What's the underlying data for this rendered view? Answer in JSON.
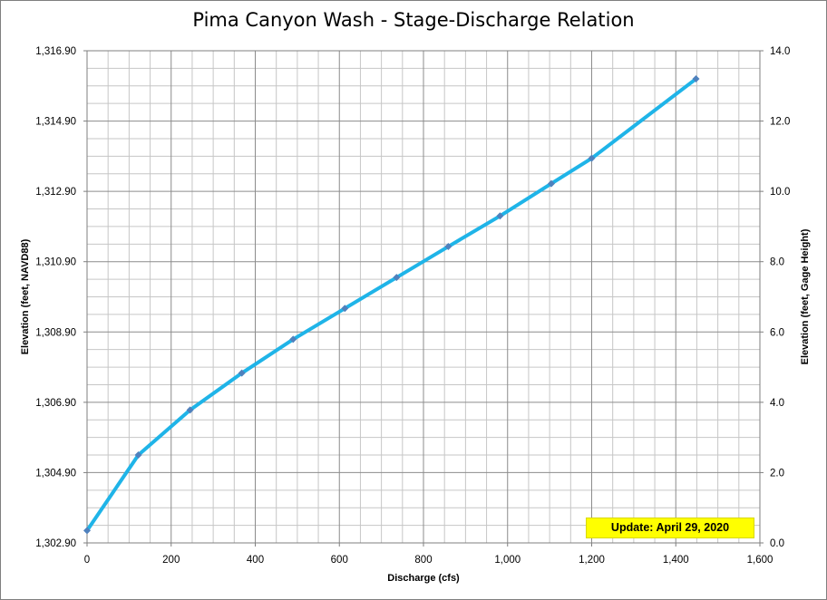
{
  "chart_data": {
    "type": "line",
    "title": "Pima Canyon Wash - Stage-Discharge Relation",
    "xlabel": "Discharge (cfs)",
    "ylabel_left": "Elevation (feet, NAVD88)",
    "ylabel_right": "Elevation (feet, Gage Height)",
    "xlim": [
      0,
      1600
    ],
    "ylim_left": [
      1302.9,
      1316.9
    ],
    "ylim_right": [
      0.0,
      14.0
    ],
    "x_ticks": [
      "0",
      "200",
      "400",
      "600",
      "800",
      "1,000",
      "1,200",
      "1,400",
      "1,600"
    ],
    "y_left_ticks": [
      "1,302.90",
      "1,304.90",
      "1,306.90",
      "1,308.90",
      "1,310.90",
      "1,312.90",
      "1,314.90",
      "1,316.90"
    ],
    "y_right_ticks": [
      "0.0",
      "2.0",
      "4.0",
      "6.0",
      "8.0",
      "10.0",
      "12.0",
      "14.0"
    ],
    "grid": true,
    "series": [
      {
        "color": "#1fb4e8",
        "marker_color": "#4f81bd",
        "x": [
          0,
          122,
          245,
          368,
          490,
          613,
          736,
          859,
          982,
          1104,
          1200,
          1448
        ],
        "y": [
          1303.25,
          1305.4,
          1306.68,
          1307.73,
          1308.69,
          1309.57,
          1310.45,
          1311.33,
          1312.2,
          1313.12,
          1313.84,
          1316.1
        ]
      }
    ],
    "annotations": {
      "update_label": "Update: April 29, 2020",
      "update_color": "#ffff00"
    }
  }
}
